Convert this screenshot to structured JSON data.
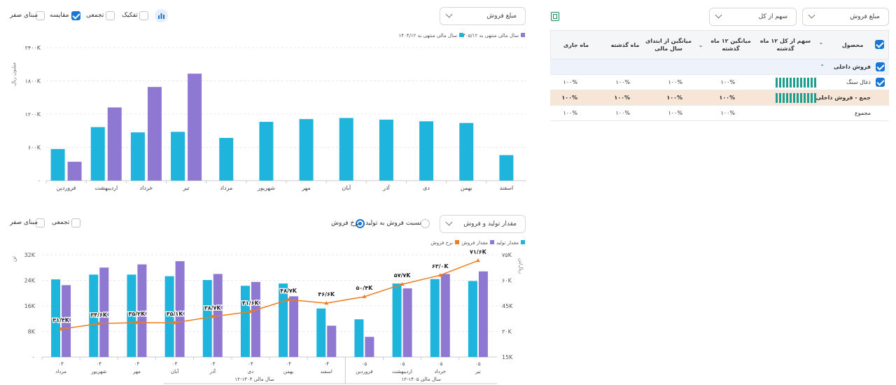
{
  "colors": {
    "cyan": "#1eb4dc",
    "purple": "#8f78d2",
    "orange": "#f07c1e",
    "blue": "#1976d2",
    "teal": "#1e9e8e",
    "highlight": "#f7e6d8"
  },
  "chart1": {
    "dropdown": "مبلغ فروش",
    "options": [
      {
        "label": "مبنای صفر",
        "checked": false
      },
      {
        "label": "مقایسه",
        "checked": true
      },
      {
        "label": "تجمعی",
        "checked": false
      },
      {
        "label": "تفکیک",
        "checked": false
      }
    ],
    "chart_icon": "bar-chart-icon"
  },
  "chart2": {
    "dropdown": "مقدار تولید و فروش",
    "radios": [
      {
        "label": "نسبت فروش به تولید",
        "selected": false
      },
      {
        "label": "نرخ فروش",
        "selected": true
      }
    ],
    "options": [
      {
        "label": "مبنای صفر",
        "checked": false
      },
      {
        "label": "تجمعی",
        "checked": false
      }
    ]
  },
  "chart_data": [
    {
      "type": "bar",
      "categories": [
        "فروردین",
        "اردیبهشت",
        "خرداد",
        "تیر",
        "مرداد",
        "شهریور",
        "مهر",
        "آبان",
        "آذر",
        "دی",
        "بهمن",
        "اسفند"
      ],
      "series": [
        {
          "name": "سال مالی منتهی به ۱۴۰۵/۱۲",
          "color": "#1eb4dc",
          "values": [
            570,
            965,
            870,
            880,
            770,
            1060,
            1110,
            1130,
            1100,
            1070,
            1040,
            460
          ]
        },
        {
          "name": "سال مالی منتهی به ۱۴۰۴/۱۲",
          "color": "#8f78d2",
          "values": [
            340,
            1320,
            1690,
            1930,
            null,
            null,
            null,
            null,
            null,
            null,
            null,
            null
          ]
        }
      ],
      "ylabel": "میلیون ریال",
      "yticks": [
        "۰",
        "۶۰۰K",
        "۱۲۰۰K",
        "۱۸۰۰K",
        "۲۴۰۰K"
      ],
      "ylim": [
        0,
        2400
      ],
      "grid": true,
      "legend": "top-right"
    },
    {
      "type": "bar",
      "categories": [
        "مرداد",
        "شهریور",
        "مهر",
        "آبان",
        "آذر",
        "دی",
        "بهمن",
        "اسفند",
        "فروردین",
        "اردیبهشت",
        "خرداد",
        "تیر"
      ],
      "year_prefix": [
        "۰۴",
        "۰۴",
        "۰۴",
        "۰۴",
        "۰۴",
        "۰۴",
        "۰۴",
        "۰۴",
        "۰۵",
        "۰۵",
        "۰۵",
        "۰۵"
      ],
      "groups": [
        {
          "label": "سال مالی ۱۴۰۴-۱۲",
          "from": 0,
          "to": 7
        },
        {
          "label": "سال مالی ۱۴۰۵-۱۲",
          "from": 8,
          "to": 11
        }
      ],
      "series": [
        {
          "name": "مقدار تولید",
          "color": "#1eb4dc",
          "axis": "left",
          "values": [
            24300,
            25800,
            25800,
            25300,
            24100,
            22300,
            23000,
            15200,
            11800,
            23000,
            24400,
            23800
          ]
        },
        {
          "name": "مقدار فروش",
          "color": "#8f78d2",
          "axis": "left",
          "values": [
            22500,
            28000,
            29000,
            30000,
            26000,
            23500,
            19000,
            9800,
            6300,
            21500,
            26000,
            26800
          ]
        },
        {
          "name": "نرخ فروش",
          "color": "#f07c1e",
          "axis": "right",
          "type": "line",
          "values": [
            31400,
            34600,
            35200,
            35100,
            38700,
            41600,
            48700,
            46600,
            50400,
            57700,
            63000,
            71600
          ],
          "labels": [
            "۳۱/۴K",
            "۳۴/۶K",
            "۳۵/۲K",
            "۳۵/۱K",
            "۳۸/۷K",
            "۴۱/۶K",
            "۴۸/۷K",
            "۴۶/۶K",
            "۵۰/۴K",
            "۵۷/۷K",
            "۶۳/۰K",
            "۷۱/۶K"
          ]
        }
      ],
      "yleft_label": "تن",
      "yleft_ticks": [
        "۰",
        "8K",
        "16K",
        "24K",
        "32K"
      ],
      "yleft_lim": [
        0,
        32000
      ],
      "yright_label": "ریال/تن",
      "yright_ticks": [
        "15K",
        "۳۰K",
        "45K",
        "۶۰K",
        "۷۵K"
      ],
      "yright_lim": [
        15000,
        75000
      ],
      "grid": true,
      "legend": "top-right"
    }
  ],
  "table": {
    "dropdowns": [
      "مبلغ فروش",
      "سهم از کل"
    ],
    "export_icon": "excel-export-icon",
    "headers": [
      "محصول",
      "سهم از کل ۱۲ ماه گذشته",
      "میانگین ۱۲ ماه گذشته",
      "میانگین از ابتدای سال مالی",
      "ماه گذشته",
      "ماه جاری"
    ],
    "group": "فروش داخلی",
    "rows": [
      {
        "name": "ذغال سنگ",
        "spark": true,
        "values": [
          "۱۰۰%",
          "۱۰۰%",
          "۱۰۰%",
          "۱۰۰%"
        ],
        "style": "normal"
      },
      {
        "name": "جمع - فروش داخلی",
        "spark": true,
        "values": [
          "۱۰۰%",
          "۱۰۰%",
          "۱۰۰%",
          "۱۰۰%"
        ],
        "style": "total"
      },
      {
        "name": "مجموع",
        "spark": false,
        "values": [
          "۱۰۰%",
          "۱۰۰%",
          "۱۰۰%",
          "۱۰۰%"
        ],
        "style": "normal"
      }
    ]
  }
}
